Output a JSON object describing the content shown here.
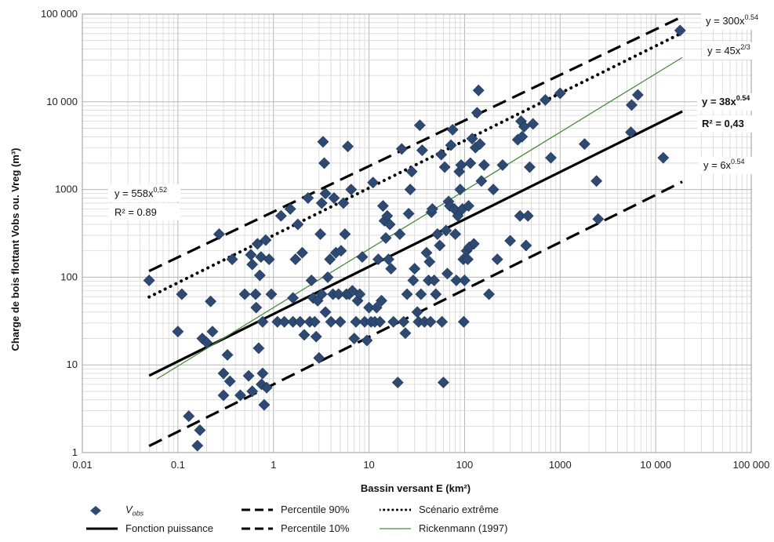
{
  "chart_data": {
    "type": "scatter",
    "title": "",
    "xlabel": "Bassin versant E (km²)",
    "ylabel": "Charge de bois flottant Vobs ou. Vreg (m³)",
    "xscale": "log",
    "yscale": "log",
    "xlim": [
      0.01,
      100000
    ],
    "ylim": [
      1,
      100000
    ],
    "x_tick_labels": [
      "0.01",
      "0.1",
      "1",
      "10",
      "100",
      "1000",
      "10 000",
      "100 000"
    ],
    "y_tick_labels": [
      "1",
      "10",
      "100",
      "1000",
      "10 000",
      "100 000"
    ],
    "grid": true,
    "legend_position": "bottom",
    "series": [
      {
        "name": "Vobs",
        "kind": "scatter",
        "marker": "diamond",
        "color": "#2e4a73",
        "points": [
          [
            0.05,
            92
          ],
          [
            0.1,
            24
          ],
          [
            0.11,
            64
          ],
          [
            0.13,
            2.6
          ],
          [
            0.16,
            1.2
          ],
          [
            0.17,
            1.8
          ],
          [
            0.18,
            20
          ],
          [
            0.2,
            18
          ],
          [
            0.22,
            53
          ],
          [
            0.23,
            24
          ],
          [
            0.27,
            310
          ],
          [
            0.3,
            8
          ],
          [
            0.3,
            4.5
          ],
          [
            0.33,
            13
          ],
          [
            0.35,
            6.5
          ],
          [
            0.37,
            160
          ],
          [
            0.45,
            4.5
          ],
          [
            0.5,
            64
          ],
          [
            0.55,
            7.5
          ],
          [
            0.58,
            180
          ],
          [
            0.6,
            140
          ],
          [
            0.6,
            5
          ],
          [
            0.65,
            64
          ],
          [
            0.66,
            45
          ],
          [
            0.68,
            240
          ],
          [
            0.7,
            15.5
          ],
          [
            0.72,
            105
          ],
          [
            0.74,
            170
          ],
          [
            0.75,
            6
          ],
          [
            0.77,
            31
          ],
          [
            0.77,
            8
          ],
          [
            0.8,
            3.5
          ],
          [
            0.83,
            265
          ],
          [
            0.85,
            5.5
          ],
          [
            0.9,
            160
          ],
          [
            0.95,
            64
          ],
          [
            1.1,
            31
          ],
          [
            1.2,
            500
          ],
          [
            1.3,
            31
          ],
          [
            1.5,
            600
          ],
          [
            1.6,
            31
          ],
          [
            1.6,
            58
          ],
          [
            1.7,
            160
          ],
          [
            1.8,
            400
          ],
          [
            1.9,
            31
          ],
          [
            2.0,
            190
          ],
          [
            2.1,
            22
          ],
          [
            2.3,
            800
          ],
          [
            2.4,
            31
          ],
          [
            2.5,
            92
          ],
          [
            2.6,
            58
          ],
          [
            2.7,
            31
          ],
          [
            2.8,
            21
          ],
          [
            2.9,
            54
          ],
          [
            3.0,
            12
          ],
          [
            3.1,
            310
          ],
          [
            3.2,
            64
          ],
          [
            3.2,
            700
          ],
          [
            3.3,
            3500
          ],
          [
            3.4,
            2000
          ],
          [
            3.5,
            900
          ],
          [
            3.5,
            40
          ],
          [
            3.7,
            100
          ],
          [
            3.9,
            160
          ],
          [
            4.0,
            31
          ],
          [
            4.2,
            64
          ],
          [
            4.3,
            800
          ],
          [
            4.5,
            190
          ],
          [
            4.8,
            64
          ],
          [
            5.0,
            31
          ],
          [
            5.1,
            200
          ],
          [
            5.4,
            700
          ],
          [
            5.6,
            310
          ],
          [
            5.8,
            64
          ],
          [
            6.0,
            3100
          ],
          [
            6.2,
            64
          ],
          [
            6.5,
            1000
          ],
          [
            6.7,
            70
          ],
          [
            7.0,
            20
          ],
          [
            7.3,
            31
          ],
          [
            7.6,
            54
          ],
          [
            8.0,
            64
          ],
          [
            8.5,
            170
          ],
          [
            9.0,
            31
          ],
          [
            9.5,
            19
          ],
          [
            10.0,
            45
          ],
          [
            10.5,
            31
          ],
          [
            11.0,
            1200
          ],
          [
            11.5,
            31
          ],
          [
            12,
            45
          ],
          [
            12.5,
            160
          ],
          [
            13,
            31
          ],
          [
            13.5,
            54
          ],
          [
            14,
            650
          ],
          [
            14.5,
            440
          ],
          [
            15,
            280
          ],
          [
            15.5,
            500
          ],
          [
            16,
            160
          ],
          [
            16.5,
            400
          ],
          [
            17,
            125
          ],
          [
            18,
            31
          ],
          [
            20,
            6.3
          ],
          [
            21,
            310
          ],
          [
            22,
            2900
          ],
          [
            23,
            31
          ],
          [
            24,
            23
          ],
          [
            25,
            64
          ],
          [
            26,
            530
          ],
          [
            27,
            1000
          ],
          [
            28,
            1600
          ],
          [
            29,
            92
          ],
          [
            30,
            125
          ],
          [
            32,
            40
          ],
          [
            33,
            31
          ],
          [
            34,
            5400
          ],
          [
            35,
            64
          ],
          [
            36,
            2800
          ],
          [
            38,
            31
          ],
          [
            40,
            190
          ],
          [
            42,
            92
          ],
          [
            43,
            150
          ],
          [
            44,
            31
          ],
          [
            45,
            550
          ],
          [
            46,
            600
          ],
          [
            48,
            92
          ],
          [
            50,
            64
          ],
          [
            52,
            310
          ],
          [
            55,
            230
          ],
          [
            57,
            2500
          ],
          [
            58,
            31
          ],
          [
            60,
            6.3
          ],
          [
            62,
            1800
          ],
          [
            64,
            340
          ],
          [
            66,
            110
          ],
          [
            68,
            730
          ],
          [
            70,
            650
          ],
          [
            72,
            3200
          ],
          [
            75,
            4800
          ],
          [
            78,
            600
          ],
          [
            80,
            310
          ],
          [
            82,
            92
          ],
          [
            85,
            500
          ],
          [
            88,
            1600
          ],
          [
            90,
            1000
          ],
          [
            92,
            1900
          ],
          [
            95,
            600
          ],
          [
            97,
            160
          ],
          [
            98,
            31
          ],
          [
            100,
            92
          ],
          [
            105,
            200
          ],
          [
            108,
            160
          ],
          [
            110,
            650
          ],
          [
            112,
            220
          ],
          [
            115,
            2000
          ],
          [
            120,
            3800
          ],
          [
            125,
            240
          ],
          [
            130,
            3000
          ],
          [
            135,
            7500
          ],
          [
            140,
            13500
          ],
          [
            145,
            3300
          ],
          [
            150,
            1250
          ],
          [
            160,
            1900
          ],
          [
            180,
            64
          ],
          [
            200,
            1000
          ],
          [
            220,
            160
          ],
          [
            250,
            1900
          ],
          [
            300,
            260
          ],
          [
            360,
            3700
          ],
          [
            380,
            500
          ],
          [
            390,
            6000
          ],
          [
            400,
            4000
          ],
          [
            420,
            5200
          ],
          [
            440,
            230
          ],
          [
            460,
            500
          ],
          [
            480,
            1800
          ],
          [
            520,
            5600
          ],
          [
            700,
            10500
          ],
          [
            800,
            2300
          ],
          [
            1000,
            12500
          ],
          [
            1800,
            3300
          ],
          [
            2400,
            1250
          ],
          [
            2500,
            460
          ],
          [
            5500,
            4500
          ],
          [
            5600,
            9200
          ],
          [
            6500,
            12000
          ],
          [
            12000,
            2300
          ],
          [
            18000,
            65000
          ]
        ]
      },
      {
        "name": "Fonction puissance",
        "kind": "power",
        "equation_label": "y = 38x",
        "exponent_label": "0.54",
        "r2_label": "R² = 0,43",
        "a": 38,
        "b": 0.54,
        "x_range": [
          0.05,
          19000
        ],
        "color": "#000000",
        "dash": "solid",
        "width": 3.2
      },
      {
        "name": "Percentile 90%",
        "kind": "power",
        "equation_label": "y = 558x",
        "exponent_label": "0,52",
        "r2_label": "R² = 0.89",
        "a": 558,
        "b": 0.52,
        "x_range": [
          0.05,
          19000
        ],
        "color": "#000000",
        "dash": "dashed",
        "width": 3.2
      },
      {
        "name": "Percentile 10%",
        "kind": "power",
        "equation_label": "y = 6x",
        "exponent_label": "0.54",
        "a": 6,
        "b": 0.54,
        "x_range": [
          0.05,
          19000
        ],
        "color": "#000000",
        "dash": "dashed",
        "width": 3.2
      },
      {
        "name": "Scénario extrême",
        "kind": "power",
        "equation_label": "y = 300x",
        "exponent_label": "0.54",
        "a": 300,
        "b": 0.54,
        "x_range": [
          0.05,
          19000
        ],
        "color": "#000000",
        "dash": "dotted",
        "width": 4
      },
      {
        "name": "Rickenmann (1997)",
        "kind": "power",
        "equation_label": "y = 45x",
        "exponent_label": "2/3",
        "a": 45,
        "b": 0.6667,
        "x_range": [
          0.06,
          19000
        ],
        "color": "#4a8b3b",
        "dash": "solid",
        "width": 1.3
      }
    ],
    "legend_entries": [
      {
        "label_main": "V",
        "label_sub": "obs"
      },
      {
        "label_main": "Fonction puissance"
      },
      {
        "label_main": "Percentile 90%"
      },
      {
        "label_main": "Percentile 10%"
      },
      {
        "label_main": "Scénario extrême"
      },
      {
        "label_main": "Rickenmann (1997)"
      }
    ]
  }
}
